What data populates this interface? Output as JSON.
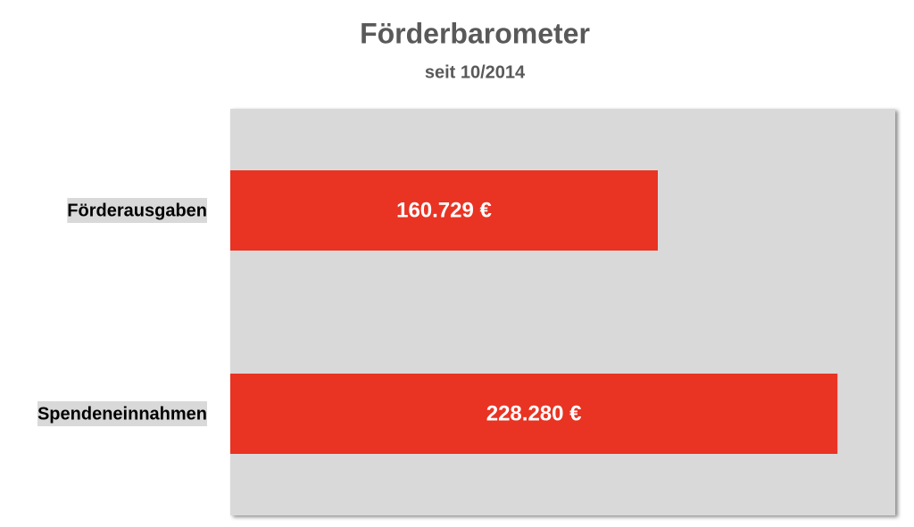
{
  "chart_data": {
    "type": "hbar",
    "title": "Förderbarometer",
    "subtitle": "seit 10/2014",
    "categories": [
      "Förderausgaben",
      "Spendeneinnahmen"
    ],
    "values": [
      160729,
      228280
    ],
    "value_labels": [
      "160.729 €",
      "228.280 €"
    ],
    "color": "#e93323",
    "xlim": [
      0,
      250000
    ]
  }
}
